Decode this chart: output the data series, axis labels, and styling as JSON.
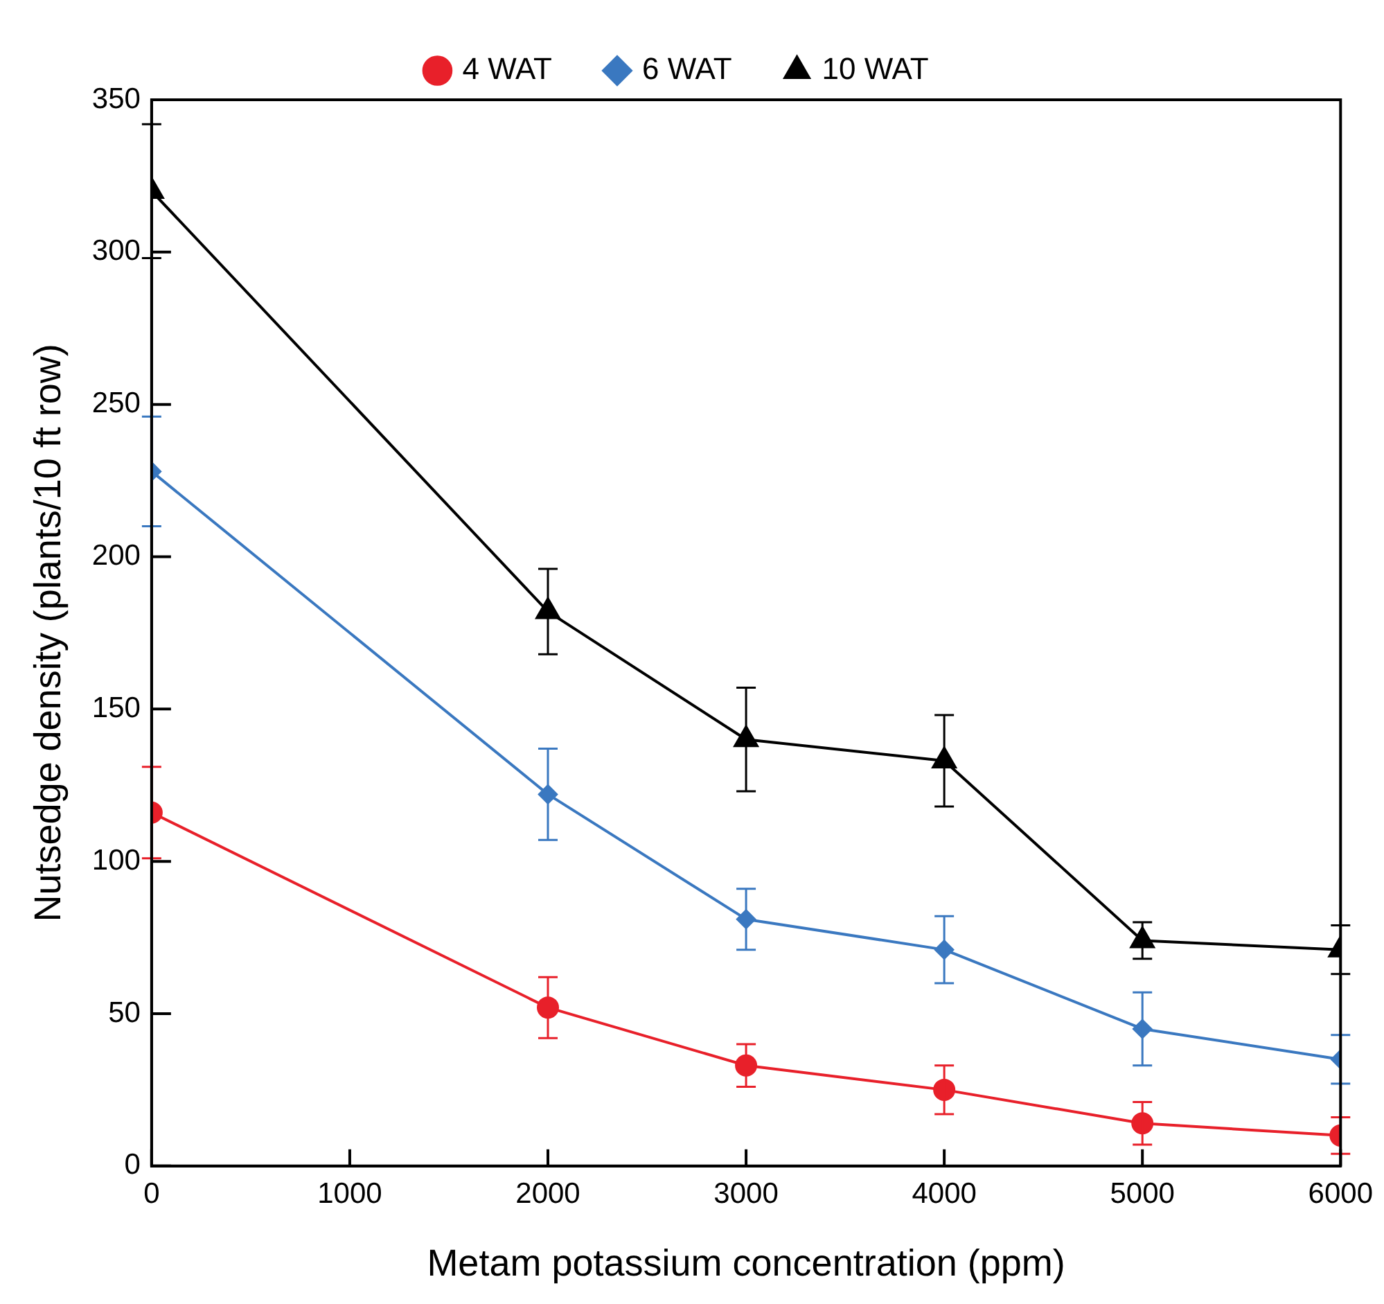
{
  "chart_data": {
    "type": "line",
    "xlabel": "Metam potassium concentration (ppm)",
    "ylabel": "Nutsedge density (plants/10 ft row)",
    "x": [
      0,
      2000,
      3000,
      4000,
      5000,
      6000
    ],
    "series": [
      {
        "name": "4 WAT",
        "color": "#e8202a",
        "marker": "circle",
        "values": [
          116,
          52,
          33,
          25,
          14,
          10
        ],
        "errors": [
          15,
          10,
          7,
          8,
          7,
          6
        ]
      },
      {
        "name": "6 WAT",
        "color": "#3a78c0",
        "marker": "diamond",
        "values": [
          228,
          122,
          81,
          71,
          45,
          35
        ],
        "errors": [
          18,
          15,
          10,
          11,
          12,
          8
        ]
      },
      {
        "name": "10 WAT",
        "color": "#000000",
        "marker": "triangle",
        "values": [
          320,
          182,
          140,
          133,
          74,
          71
        ],
        "errors": [
          22,
          14,
          17,
          15,
          6,
          8
        ]
      }
    ],
    "xlim": [
      0,
      6000
    ],
    "xticks": [
      0,
      1000,
      2000,
      3000,
      4000,
      5000,
      6000
    ],
    "ylim": [
      0,
      350
    ],
    "yticks": [
      0,
      50,
      100,
      150,
      200,
      250,
      300,
      350
    ],
    "grid": false,
    "legend": "top",
    "line_style": "solid"
  }
}
